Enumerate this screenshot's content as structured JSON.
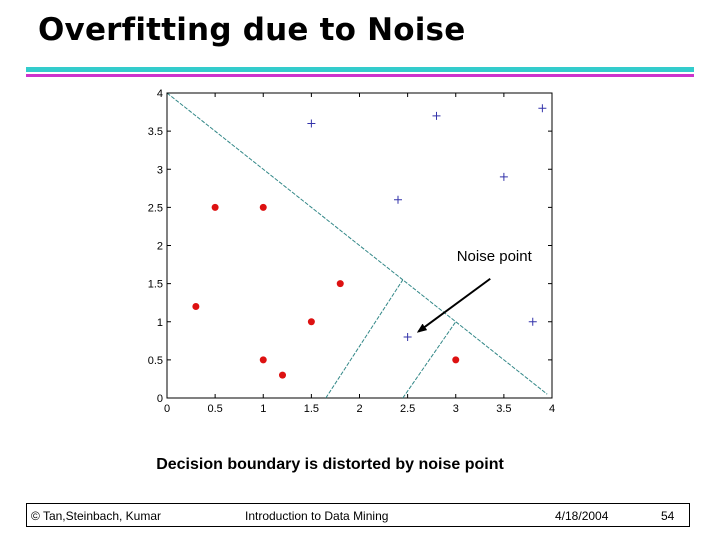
{
  "slide": {
    "title": "Overfitting due to Noise",
    "caption": "Decision boundary is distorted by noise point",
    "colors": {
      "rule_top": "#33CCCC",
      "rule_bottom": "#CC33CC"
    }
  },
  "footer": {
    "copyright": "© Tan,Steinbach, Kumar",
    "course": "Introduction to Data Mining",
    "date": "4/18/2004",
    "page": "54"
  },
  "chart_data": {
    "type": "scatter",
    "title": "",
    "xlabel": "",
    "ylabel": "",
    "xlim": [
      0,
      4
    ],
    "ylim": [
      0,
      4
    ],
    "xticks": [
      "0",
      "0.5",
      "1",
      "1.5",
      "2",
      "2.5",
      "3",
      "3.5",
      "4"
    ],
    "yticks": [
      "0",
      "0.5",
      "1",
      "1.5",
      "2",
      "2.5",
      "3",
      "3.5",
      "4"
    ],
    "grid": false,
    "series": [
      {
        "marker": "dot",
        "color": "#DD1111",
        "points": [
          [
            0.5,
            2.5
          ],
          [
            1.0,
            2.5
          ],
          [
            0.3,
            1.2
          ],
          [
            1.8,
            1.5
          ],
          [
            1.5,
            1.0
          ],
          [
            1.0,
            0.5
          ],
          [
            1.2,
            0.3
          ],
          [
            3.0,
            0.5
          ]
        ]
      },
      {
        "marker": "plus",
        "color": "#3333AA",
        "points": [
          [
            1.5,
            3.6
          ],
          [
            2.8,
            3.7
          ],
          [
            3.9,
            3.8
          ],
          [
            3.5,
            2.9
          ],
          [
            2.4,
            2.6
          ],
          [
            2.5,
            0.8
          ],
          [
            3.8,
            1.0
          ]
        ]
      }
    ],
    "boundaries": [
      [
        [
          0.0,
          4.0
        ],
        [
          2.45,
          1.55
        ],
        [
          3.0,
          1.0
        ],
        [
          3.95,
          0.05
        ]
      ],
      [
        [
          1.65,
          0.0
        ],
        [
          2.45,
          1.55
        ]
      ],
      [
        [
          2.45,
          0.0
        ],
        [
          3.0,
          1.0
        ]
      ]
    ],
    "boundary_color": "#338888",
    "annotation": {
      "text": "Noise point",
      "x": 3.4,
      "y": 1.8,
      "target": [
        2.55,
        0.95
      ]
    }
  }
}
